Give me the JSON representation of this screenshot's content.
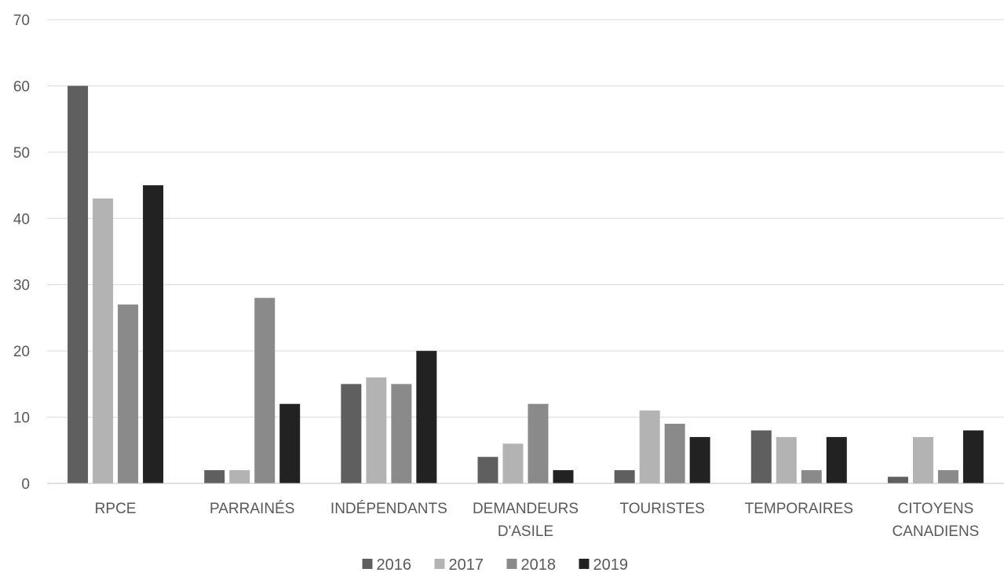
{
  "chart_data": {
    "type": "bar",
    "title": "",
    "xlabel": "",
    "ylabel": "",
    "ylim": [
      0,
      70
    ],
    "yticks": [
      0,
      10,
      20,
      30,
      40,
      50,
      60,
      70
    ],
    "grid": true,
    "legend_position": "bottom",
    "categories": [
      [
        "RPCE"
      ],
      [
        "PARRAINÉS"
      ],
      [
        "INDÉPENDANTS"
      ],
      [
        "DEMANDEURS",
        "D'ASILE"
      ],
      [
        "TOURISTES"
      ],
      [
        "TEMPORAIRES"
      ],
      [
        "CITOYENS",
        "CANADIENS"
      ]
    ],
    "series": [
      {
        "name": "2016",
        "color": "#5f5f5f",
        "values": [
          60,
          2,
          15,
          4,
          2,
          8,
          1
        ]
      },
      {
        "name": "2017",
        "color": "#b3b3b3",
        "values": [
          43,
          2,
          16,
          6,
          11,
          7,
          7
        ]
      },
      {
        "name": "2018",
        "color": "#8a8a8a",
        "values": [
          27,
          28,
          15,
          12,
          9,
          2,
          2
        ]
      },
      {
        "name": "2019",
        "color": "#222222",
        "values": [
          45,
          12,
          20,
          2,
          7,
          7,
          8
        ]
      }
    ]
  }
}
